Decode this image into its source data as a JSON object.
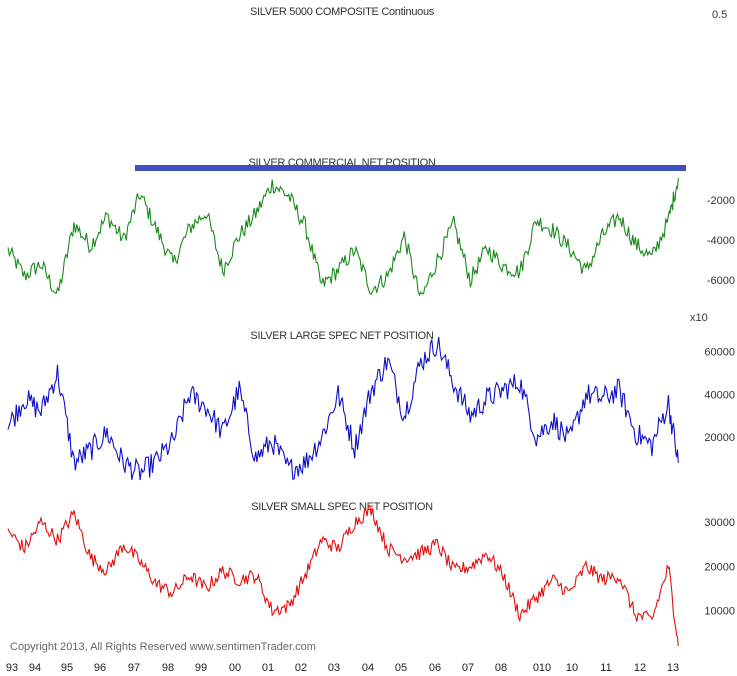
{
  "copyright": "Copyright 2013, All Rights Reserved  www.sentimenTrader.com",
  "top_label": "0.5",
  "chart_data": [
    {
      "type": "line",
      "title": "SILVER 5000 COMPOSITE Continuous",
      "series": [],
      "yticks": [
        "0.5"
      ]
    },
    {
      "type": "line",
      "title": "SILVER COMMERCIAL NET POSITION",
      "color": "#1a8a1a",
      "ylim": [
        -7500,
        0
      ],
      "yticks": [
        "-2000",
        "-4000",
        "-6000"
      ],
      "ytick_values": [
        -2000,
        -4000,
        -6000
      ],
      "unit_label": "x10",
      "x": [
        1993.0,
        1993.5,
        1994.0,
        1994.5,
        1995.0,
        1995.5,
        1996.0,
        1996.5,
        1997.0,
        1997.5,
        1998.0,
        1998.5,
        1999.0,
        1999.5,
        2000.0,
        2000.5,
        2001.0,
        2001.5,
        2002.0,
        2002.5,
        2003.0,
        2003.5,
        2004.0,
        2004.5,
        2005.0,
        2005.5,
        2006.0,
        2006.5,
        2007.0,
        2007.5,
        2008.0,
        2008.5,
        2009.0,
        2009.5,
        2010.0,
        2010.5,
        2011.0,
        2011.5,
        2012.0,
        2012.5,
        2013.0,
        2013.3
      ],
      "values": [
        -4500,
        -5800,
        -5200,
        -6800,
        -3200,
        -4300,
        -2800,
        -4000,
        -1700,
        -3500,
        -5200,
        -3400,
        -2600,
        -5500,
        -3800,
        -2700,
        -1200,
        -1800,
        -3300,
        -6300,
        -5500,
        -4500,
        -6500,
        -5800,
        -3800,
        -7000,
        -5000,
        -3200,
        -6000,
        -4400,
        -5300,
        -5600,
        -3000,
        -3500,
        -4400,
        -5600,
        -3800,
        -2800,
        -4200,
        -4900,
        -3000,
        -900
      ],
      "reference_line": {
        "y": -400,
        "color": "#3f4fbf"
      }
    },
    {
      "type": "line",
      "title": "SILVER LARGE SPEC NET POSITION",
      "color": "#1010c8",
      "ylim": [
        0,
        70000
      ],
      "yticks": [
        "60000",
        "40000",
        "20000"
      ],
      "ytick_values": [
        60000,
        40000,
        20000
      ],
      "x": [
        1993.0,
        1993.5,
        1994.0,
        1994.5,
        1995.0,
        1995.5,
        1996.0,
        1996.5,
        1997.0,
        1997.5,
        1998.0,
        1998.5,
        1999.0,
        1999.5,
        2000.0,
        2000.5,
        2001.0,
        2001.5,
        2002.0,
        2002.5,
        2003.0,
        2003.5,
        2004.0,
        2004.5,
        2005.0,
        2005.5,
        2006.0,
        2006.5,
        2007.0,
        2007.5,
        2008.0,
        2008.5,
        2009.0,
        2009.5,
        2010.0,
        2010.5,
        2011.0,
        2011.5,
        2012.0,
        2012.5,
        2013.0,
        2013.3
      ],
      "values": [
        25000,
        38000,
        32000,
        50000,
        8000,
        14000,
        22000,
        8000,
        3000,
        9000,
        18000,
        40000,
        34000,
        22000,
        42000,
        10000,
        18000,
        5000,
        8000,
        20000,
        40000,
        15000,
        42000,
        56000,
        30000,
        55000,
        64000,
        45000,
        30000,
        38000,
        42000,
        46000,
        20000,
        28000,
        18000,
        40000,
        38000,
        42000,
        22000,
        16000,
        36000,
        8000
      ]
    },
    {
      "type": "line",
      "title": "SILVER SMALL SPEC NET POSITION",
      "color": "#e01010",
      "ylim": [
        0,
        35000
      ],
      "yticks": [
        "30000",
        "20000",
        "10000"
      ],
      "ytick_values": [
        30000,
        20000,
        10000
      ],
      "x": [
        1993.0,
        1993.5,
        1994.0,
        1994.5,
        1995.0,
        1995.5,
        1996.0,
        1996.5,
        1997.0,
        1997.5,
        1998.0,
        1998.5,
        1999.0,
        1999.5,
        2000.0,
        2000.5,
        2001.0,
        2001.5,
        2002.0,
        2002.5,
        2003.0,
        2003.5,
        2004.0,
        2004.5,
        2005.0,
        2005.5,
        2006.0,
        2006.5,
        2007.0,
        2007.5,
        2008.0,
        2008.5,
        2009.0,
        2009.5,
        2010.0,
        2010.5,
        2011.0,
        2011.5,
        2012.0,
        2012.5,
        2013.0,
        2013.3
      ],
      "values": [
        28000,
        24000,
        30000,
        26000,
        32000,
        22000,
        19000,
        25000,
        21000,
        16000,
        14000,
        18000,
        15000,
        19000,
        17000,
        18000,
        10000,
        11000,
        18000,
        26000,
        24000,
        30000,
        33000,
        24000,
        22000,
        23000,
        25000,
        19000,
        20000,
        23000,
        18000,
        9000,
        13000,
        17000,
        14000,
        20000,
        17000,
        18000,
        9000,
        8000,
        20000,
        2000
      ]
    }
  ],
  "x_axis": {
    "ticks": [
      "93",
      "94",
      "95",
      "96",
      "97",
      "98",
      "99",
      "00",
      "01",
      "02",
      "03",
      "04",
      "05",
      "06",
      "07",
      "08",
      "010",
      "10",
      "11",
      "12",
      "13"
    ]
  }
}
